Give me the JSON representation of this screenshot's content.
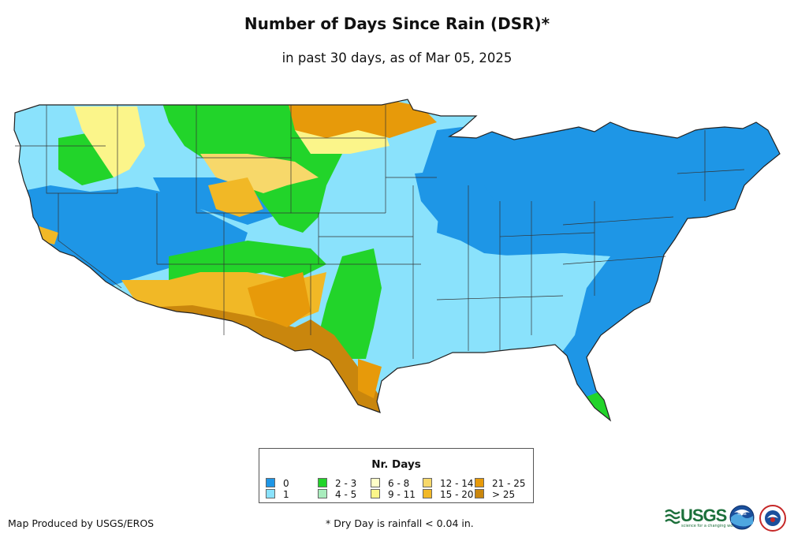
{
  "title": "Number of Days Since Rain (DSR)*",
  "subtitle": "in past 30 days, as of Mar 05, 2025",
  "map": {
    "region": "Contiguous United States",
    "metric": "Number of days since rain"
  },
  "legend": {
    "title": "Nr. Days",
    "items": [
      {
        "label": "0",
        "color": "#1e96e6"
      },
      {
        "label": "1",
        "color": "#8ae2fc"
      },
      {
        "label": "2 - 3",
        "color": "#22d42a"
      },
      {
        "label": "4 - 5",
        "color": "#a9ecbd"
      },
      {
        "label": "6 - 8",
        "color": "#ffffc8"
      },
      {
        "label": "9 - 11",
        "color": "#fbf58a"
      },
      {
        "label": "12 - 14",
        "color": "#f7d86a"
      },
      {
        "label": "15 - 20",
        "color": "#f1b826"
      },
      {
        "label": "21 - 25",
        "color": "#e79a0a"
      },
      {
        "label": "> 25",
        "color": "#c9860d"
      }
    ]
  },
  "footer": {
    "producer": "Map Produced by USGS/EROS",
    "note": "* Dry Day is rainfall < 0.04 in."
  },
  "logos": {
    "usgs": "USGS",
    "usgs_tagline": "science for a changing world",
    "noaa": "noaa",
    "nws_icon": "nws-logo"
  }
}
